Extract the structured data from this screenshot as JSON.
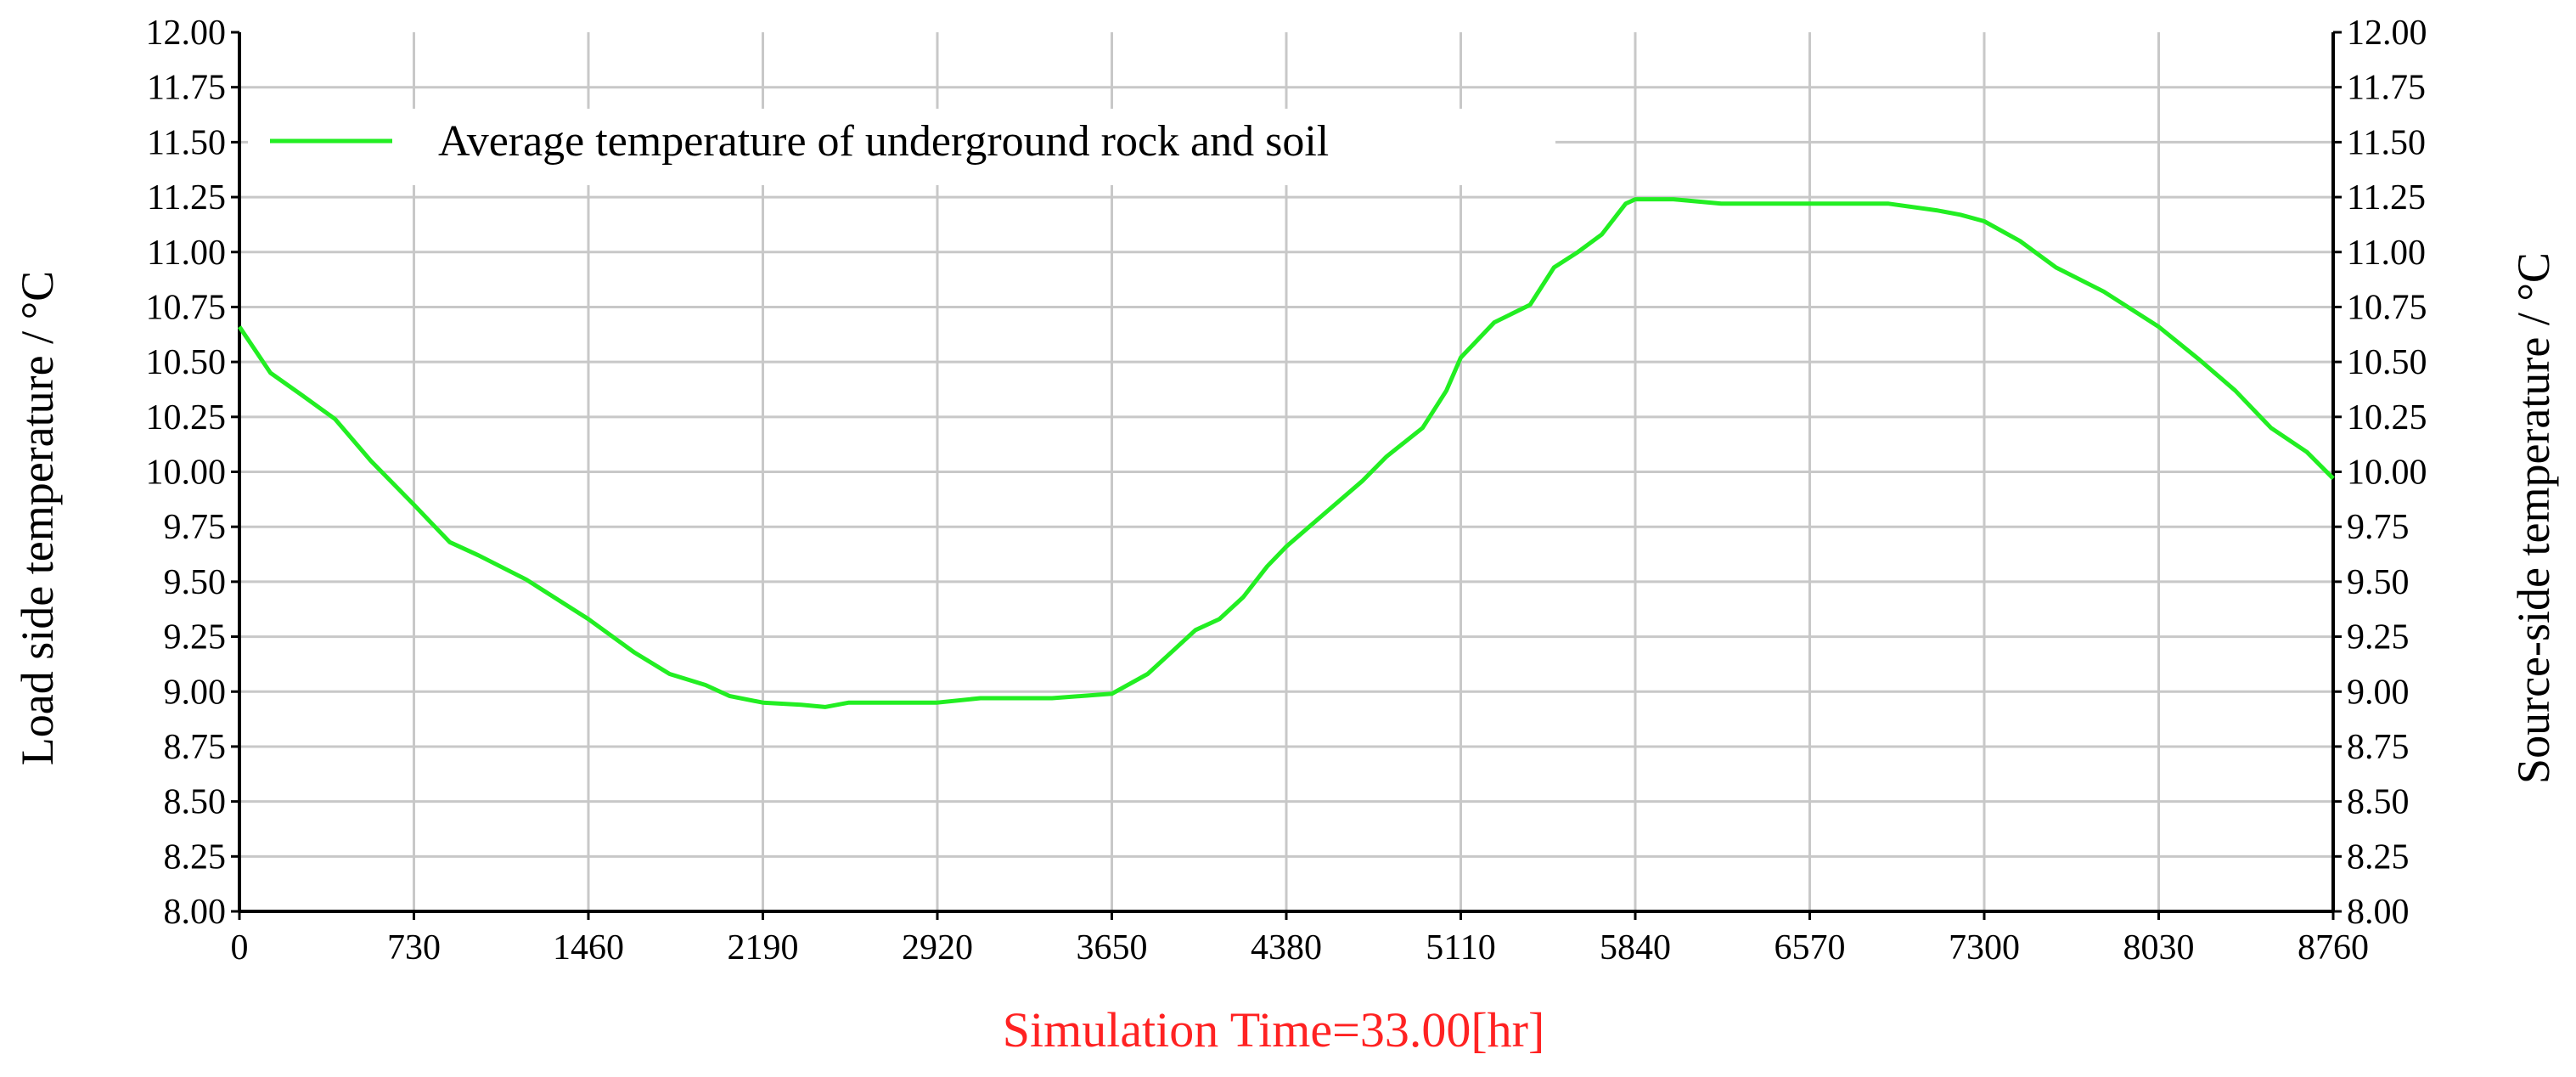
{
  "chart_data": {
    "type": "line",
    "title": "",
    "xlabel": "Simulation Time=33.00[hr]",
    "ylabel_left": "Load side temperature / °C",
    "ylabel_right": "Source-side temperature / °C",
    "xlim": [
      0,
      8760
    ],
    "ylim": [
      8.0,
      12.0
    ],
    "x_ticks": [
      "0",
      "730",
      "1460",
      "2190",
      "2920",
      "3650",
      "4380",
      "5110",
      "5840",
      "6570",
      "7300",
      "8030",
      "8760"
    ],
    "y_ticks": [
      "8.00",
      "8.25",
      "8.50",
      "8.75",
      "9.00",
      "9.25",
      "9.50",
      "9.75",
      "10.00",
      "10.25",
      "10.50",
      "10.75",
      "11.00",
      "11.25",
      "11.50",
      "11.75",
      "12.00"
    ],
    "grid": true,
    "legend_position": "top-left",
    "colors": {
      "series": "#22ee22",
      "xlabel": "#ff2222"
    },
    "series": [
      {
        "name": "Average temperature of underground rock and soil",
        "x": [
          0,
          130,
          260,
          400,
          550,
          730,
          880,
          1000,
          1200,
          1460,
          1650,
          1800,
          1950,
          2050,
          2190,
          2350,
          2450,
          2550,
          2920,
          3100,
          3400,
          3650,
          3800,
          3900,
          4000,
          4100,
          4200,
          4300,
          4380,
          4550,
          4700,
          4800,
          4950,
          5050,
          5110,
          5250,
          5400,
          5500,
          5600,
          5700,
          5800,
          5840,
          6000,
          6200,
          6570,
          6900,
          7100,
          7200,
          7300,
          7450,
          7600,
          7800,
          8030,
          8200,
          8350,
          8500,
          8650,
          8760
        ],
        "values": [
          10.66,
          10.45,
          10.35,
          10.24,
          10.05,
          9.85,
          9.68,
          9.62,
          9.51,
          9.33,
          9.18,
          9.08,
          9.03,
          8.98,
          8.95,
          8.94,
          8.93,
          8.95,
          8.95,
          8.97,
          8.97,
          8.99,
          9.08,
          9.18,
          9.28,
          9.33,
          9.43,
          9.57,
          9.66,
          9.82,
          9.96,
          10.07,
          10.2,
          10.37,
          10.52,
          10.68,
          10.76,
          10.93,
          11.0,
          11.08,
          11.22,
          11.24,
          11.24,
          11.22,
          11.22,
          11.22,
          11.19,
          11.17,
          11.14,
          11.05,
          10.93,
          10.82,
          10.66,
          10.51,
          10.37,
          10.2,
          10.09,
          9.97
        ]
      }
    ]
  }
}
